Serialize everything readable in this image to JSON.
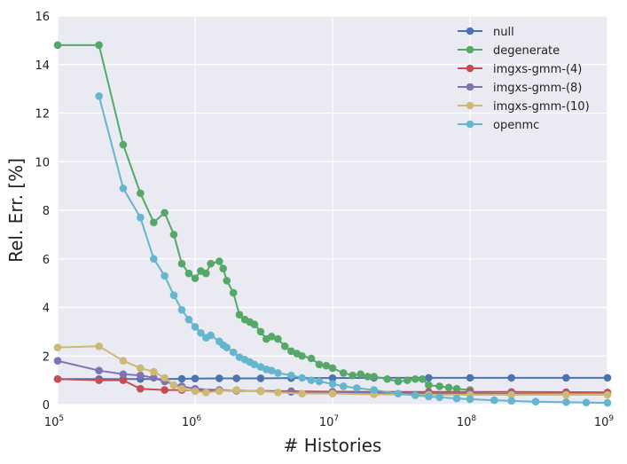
{
  "chart_data": {
    "type": "line",
    "xscale": "log",
    "xlabel": "# Histories",
    "ylabel": "Rel. Err. [%]",
    "xlim": [
      100000,
      1000000000
    ],
    "ylim": [
      0,
      16
    ],
    "grid": true,
    "legend": "top-right",
    "x_ticks": [
      {
        "value": 100000,
        "base": "10",
        "exp": "5"
      },
      {
        "value": 1000000,
        "base": "10",
        "exp": "6"
      },
      {
        "value": 10000000,
        "base": "10",
        "exp": "7"
      },
      {
        "value": 100000000,
        "base": "10",
        "exp": "8"
      },
      {
        "value": 1000000000,
        "base": "10",
        "exp": "9"
      }
    ],
    "y_ticks": [
      0,
      2,
      4,
      6,
      8,
      10,
      12,
      14,
      16
    ],
    "series": [
      {
        "name": "null",
        "color": "#4c72b0",
        "points": [
          [
            100000,
            1.05
          ],
          [
            200000,
            1.05
          ],
          [
            300000,
            1.05
          ],
          [
            400000,
            1.05
          ],
          [
            600000,
            1.05
          ],
          [
            800000,
            1.06
          ],
          [
            1000000,
            1.07
          ],
          [
            1500000,
            1.08
          ],
          [
            2000000,
            1.08
          ],
          [
            3000000,
            1.08
          ],
          [
            5000000,
            1.09
          ],
          [
            10000000,
            1.09
          ],
          [
            20000000,
            1.1
          ],
          [
            50000000,
            1.1
          ],
          [
            100000000,
            1.1
          ],
          [
            200000000,
            1.1
          ],
          [
            500000000,
            1.1
          ],
          [
            1000000000,
            1.1
          ]
        ]
      },
      {
        "name": "degenerate",
        "color": "#55a868",
        "points": [
          [
            100000,
            14.8
          ],
          [
            200000,
            14.8
          ],
          [
            300000,
            10.7
          ],
          [
            400000,
            8.7
          ],
          [
            500000,
            7.5
          ],
          [
            600000,
            7.9
          ],
          [
            700000,
            7.0
          ],
          [
            800000,
            5.8
          ],
          [
            900000,
            5.4
          ],
          [
            1000000,
            5.2
          ],
          [
            1100000,
            5.5
          ],
          [
            1200000,
            5.4
          ],
          [
            1300000,
            5.8
          ],
          [
            1500000,
            5.9
          ],
          [
            1600000,
            5.6
          ],
          [
            1700000,
            5.1
          ],
          [
            1900000,
            4.6
          ],
          [
            2100000,
            3.7
          ],
          [
            2300000,
            3.5
          ],
          [
            2500000,
            3.4
          ],
          [
            2700000,
            3.3
          ],
          [
            3000000,
            3.0
          ],
          [
            3300000,
            2.7
          ],
          [
            3600000,
            2.8
          ],
          [
            4000000,
            2.7
          ],
          [
            4500000,
            2.4
          ],
          [
            5000000,
            2.2
          ],
          [
            5500000,
            2.1
          ],
          [
            6000000,
            2.0
          ],
          [
            7000000,
            1.9
          ],
          [
            8000000,
            1.65
          ],
          [
            9000000,
            1.6
          ],
          [
            10000000,
            1.5
          ],
          [
            12000000,
            1.3
          ],
          [
            14000000,
            1.2
          ],
          [
            16000000,
            1.25
          ],
          [
            18000000,
            1.15
          ],
          [
            20000000,
            1.15
          ],
          [
            25000000,
            1.05
          ],
          [
            30000000,
            0.95
          ],
          [
            35000000,
            1.0
          ],
          [
            40000000,
            1.05
          ],
          [
            45000000,
            1.05
          ],
          [
            50000000,
            0.8
          ],
          [
            60000000,
            0.75
          ],
          [
            70000000,
            0.7
          ],
          [
            80000000,
            0.65
          ],
          [
            100000000,
            0.6
          ]
        ]
      },
      {
        "name": "imgxs-gmm-(4)",
        "color": "#c44e52",
        "points": [
          [
            100000,
            1.05
          ],
          [
            200000,
            1.0
          ],
          [
            300000,
            1.0
          ],
          [
            400000,
            0.65
          ],
          [
            600000,
            0.6
          ],
          [
            800000,
            0.6
          ],
          [
            1000000,
            0.58
          ],
          [
            2000000,
            0.57
          ],
          [
            3000000,
            0.56
          ],
          [
            5000000,
            0.55
          ],
          [
            10000000,
            0.53
          ],
          [
            20000000,
            0.52
          ],
          [
            50000000,
            0.52
          ],
          [
            100000000,
            0.52
          ],
          [
            200000000,
            0.52
          ],
          [
            500000000,
            0.51
          ],
          [
            1000000000,
            0.5
          ]
        ]
      },
      {
        "name": "imgxs-gmm-(8)",
        "color": "#8172b2",
        "points": [
          [
            100000,
            1.8
          ],
          [
            200000,
            1.4
          ],
          [
            300000,
            1.25
          ],
          [
            400000,
            1.2
          ],
          [
            500000,
            1.1
          ],
          [
            600000,
            0.95
          ],
          [
            800000,
            0.75
          ],
          [
            1000000,
            0.65
          ],
          [
            1500000,
            0.6
          ],
          [
            2000000,
            0.58
          ],
          [
            3000000,
            0.55
          ],
          [
            5000000,
            0.52
          ],
          [
            10000000,
            0.5
          ],
          [
            20000000,
            0.47
          ],
          [
            50000000,
            0.45
          ],
          [
            100000000,
            0.45
          ],
          [
            200000000,
            0.44
          ],
          [
            500000000,
            0.43
          ],
          [
            1000000000,
            0.42
          ]
        ]
      },
      {
        "name": "imgxs-gmm-(10)",
        "color": "#ccb974",
        "points": [
          [
            100000,
            2.35
          ],
          [
            200000,
            2.4
          ],
          [
            300000,
            1.8
          ],
          [
            400000,
            1.5
          ],
          [
            500000,
            1.35
          ],
          [
            600000,
            1.1
          ],
          [
            700000,
            0.8
          ],
          [
            800000,
            0.65
          ],
          [
            1000000,
            0.55
          ],
          [
            1200000,
            0.5
          ],
          [
            1500000,
            0.55
          ],
          [
            2000000,
            0.6
          ],
          [
            3000000,
            0.55
          ],
          [
            4000000,
            0.5
          ],
          [
            6000000,
            0.45
          ],
          [
            10000000,
            0.45
          ],
          [
            20000000,
            0.42
          ],
          [
            50000000,
            0.4
          ],
          [
            100000000,
            0.4
          ],
          [
            200000000,
            0.4
          ],
          [
            500000000,
            0.4
          ],
          [
            1000000000,
            0.4
          ]
        ]
      },
      {
        "name": "openmc",
        "color": "#64b5cd",
        "points": [
          [
            200000,
            12.7
          ],
          [
            300000,
            8.9
          ],
          [
            400000,
            7.7
          ],
          [
            500000,
            6.0
          ],
          [
            600000,
            5.3
          ],
          [
            700000,
            4.5
          ],
          [
            800000,
            3.9
          ],
          [
            900000,
            3.5
          ],
          [
            1000000,
            3.2
          ],
          [
            1100000,
            2.95
          ],
          [
            1200000,
            2.75
          ],
          [
            1300000,
            2.85
          ],
          [
            1500000,
            2.6
          ],
          [
            1600000,
            2.45
          ],
          [
            1700000,
            2.35
          ],
          [
            1900000,
            2.15
          ],
          [
            2100000,
            1.95
          ],
          [
            2300000,
            1.85
          ],
          [
            2500000,
            1.75
          ],
          [
            2700000,
            1.65
          ],
          [
            3000000,
            1.55
          ],
          [
            3300000,
            1.45
          ],
          [
            3600000,
            1.4
          ],
          [
            4000000,
            1.3
          ],
          [
            5000000,
            1.2
          ],
          [
            6000000,
            1.1
          ],
          [
            7000000,
            1.0
          ],
          [
            8000000,
            0.95
          ],
          [
            10000000,
            0.85
          ],
          [
            12000000,
            0.75
          ],
          [
            15000000,
            0.68
          ],
          [
            20000000,
            0.6
          ],
          [
            30000000,
            0.45
          ],
          [
            40000000,
            0.38
          ],
          [
            50000000,
            0.33
          ],
          [
            60000000,
            0.3
          ],
          [
            80000000,
            0.25
          ],
          [
            100000000,
            0.22
          ],
          [
            150000000,
            0.18
          ],
          [
            200000000,
            0.15
          ],
          [
            300000000,
            0.12
          ],
          [
            500000000,
            0.1
          ],
          [
            700000000,
            0.08
          ],
          [
            1000000000,
            0.07
          ]
        ]
      }
    ]
  }
}
